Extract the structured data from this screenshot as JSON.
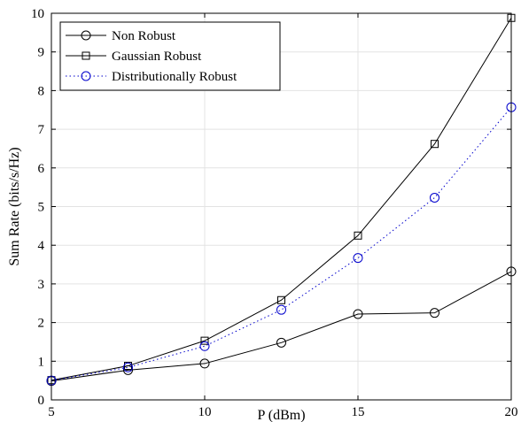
{
  "chart_data": {
    "type": "line",
    "xlabel": "P (dBm)",
    "ylabel": "Sum Rate (bits/s/Hz)",
    "xlim": [
      5,
      20
    ],
    "ylim": [
      0,
      10
    ],
    "xticks": [
      5,
      10,
      15,
      20
    ],
    "yticks": [
      0,
      1,
      2,
      3,
      4,
      5,
      6,
      7,
      8,
      9,
      10
    ],
    "grid": true,
    "legend_position": "top-left",
    "x": [
      5,
      7.5,
      10,
      12.5,
      15,
      17.5,
      20
    ],
    "series": [
      {
        "name": "Non Robust",
        "values": [
          0.49,
          0.77,
          0.94,
          1.48,
          2.22,
          2.25,
          3.32
        ],
        "color": "#000000",
        "line_style": "solid",
        "marker": "circle"
      },
      {
        "name": "Gaussian Robust",
        "values": [
          0.51,
          0.88,
          1.53,
          2.58,
          4.25,
          6.62,
          9.88
        ],
        "color": "#000000",
        "line_style": "solid",
        "marker": "square"
      },
      {
        "name": "Distributionally Robust",
        "values": [
          0.5,
          0.84,
          1.39,
          2.33,
          3.67,
          5.23,
          7.57
        ],
        "color": "#0000cc",
        "line_style": "dotted",
        "marker": "circle"
      }
    ]
  }
}
